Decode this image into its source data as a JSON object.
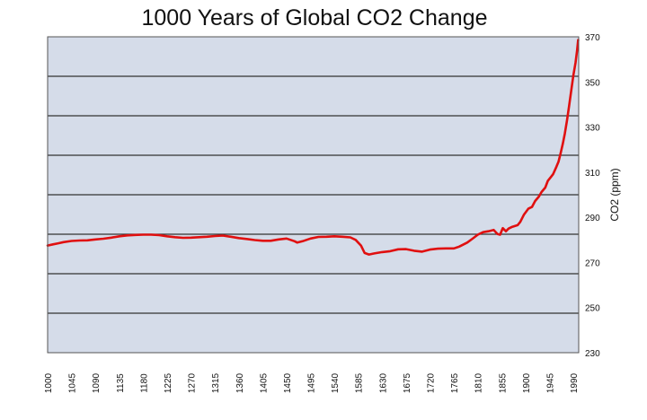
{
  "chart_data": {
    "type": "line",
    "title": "1000 Years of Global CO2 Change",
    "xlabel": "",
    "ylabel": "CO2 (ppm)",
    "xlim": [
      1000,
      2000
    ],
    "ylim": [
      230,
      370
    ],
    "x_ticks": [
      "1000",
      "1045",
      "1090",
      "1135",
      "1180",
      "1225",
      "1270",
      "1315",
      "1360",
      "1405",
      "1450",
      "1495",
      "1540",
      "1585",
      "1630",
      "1675",
      "1720",
      "1765",
      "1810",
      "1855",
      "1900",
      "1945",
      "1990"
    ],
    "y_ticks": [
      "370",
      "350",
      "330",
      "310",
      "290",
      "270",
      "250",
      "230"
    ],
    "grid": true,
    "legend": "none",
    "colors": {
      "line": "#e01010",
      "plot_bg": "#d5dce9",
      "grid": "#333333"
    },
    "series": [
      {
        "points": [
          [
            1000,
            277.5
          ],
          [
            1010,
            278.0
          ],
          [
            1020,
            278.5
          ],
          [
            1030,
            279.0
          ],
          [
            1045,
            279.5
          ],
          [
            1060,
            279.7
          ],
          [
            1075,
            279.8
          ],
          [
            1090,
            280.2
          ],
          [
            1105,
            280.5
          ],
          [
            1120,
            281.0
          ],
          [
            1135,
            281.6
          ],
          [
            1150,
            282.0
          ],
          [
            1165,
            282.2
          ],
          [
            1180,
            282.3
          ],
          [
            1195,
            282.3
          ],
          [
            1210,
            282.1
          ],
          [
            1225,
            281.6
          ],
          [
            1240,
            281.2
          ],
          [
            1255,
            280.9
          ],
          [
            1270,
            281.0
          ],
          [
            1285,
            281.2
          ],
          [
            1300,
            281.4
          ],
          [
            1315,
            281.7
          ],
          [
            1330,
            281.9
          ],
          [
            1345,
            281.4
          ],
          [
            1360,
            280.8
          ],
          [
            1375,
            280.4
          ],
          [
            1390,
            279.9
          ],
          [
            1405,
            279.6
          ],
          [
            1420,
            279.6
          ],
          [
            1435,
            280.2
          ],
          [
            1450,
            280.6
          ],
          [
            1465,
            279.4
          ],
          [
            1470,
            278.8
          ],
          [
            1480,
            279.4
          ],
          [
            1495,
            280.6
          ],
          [
            1510,
            281.3
          ],
          [
            1525,
            281.4
          ],
          [
            1540,
            281.6
          ],
          [
            1555,
            281.4
          ],
          [
            1570,
            281.1
          ],
          [
            1580,
            280.0
          ],
          [
            1590,
            277.5
          ],
          [
            1597,
            274.2
          ],
          [
            1605,
            273.5
          ],
          [
            1615,
            274.0
          ],
          [
            1630,
            274.6
          ],
          [
            1645,
            275.0
          ],
          [
            1660,
            275.8
          ],
          [
            1675,
            275.9
          ],
          [
            1690,
            275.2
          ],
          [
            1705,
            274.8
          ],
          [
            1720,
            275.7
          ],
          [
            1735,
            276.1
          ],
          [
            1750,
            276.2
          ],
          [
            1765,
            276.2
          ],
          [
            1775,
            277.0
          ],
          [
            1790,
            278.8
          ],
          [
            1800,
            280.5
          ],
          [
            1810,
            282.3
          ],
          [
            1820,
            283.4
          ],
          [
            1830,
            283.8
          ],
          [
            1840,
            284.4
          ],
          [
            1847,
            282.6
          ],
          [
            1852,
            282.3
          ],
          [
            1857,
            285.2
          ],
          [
            1863,
            283.8
          ],
          [
            1868,
            285.0
          ],
          [
            1875,
            285.8
          ],
          [
            1885,
            286.5
          ],
          [
            1890,
            288.0
          ],
          [
            1897,
            291.2
          ],
          [
            1905,
            293.8
          ],
          [
            1912,
            294.6
          ],
          [
            1918,
            297.2
          ],
          [
            1925,
            299.2
          ],
          [
            1930,
            301.2
          ],
          [
            1937,
            303.2
          ],
          [
            1942,
            306.2
          ],
          [
            1948,
            308.0
          ],
          [
            1952,
            309.2
          ],
          [
            1958,
            312.4
          ],
          [
            1962,
            314.6
          ],
          [
            1966,
            318.4
          ],
          [
            1970,
            322.6
          ],
          [
            1974,
            327.2
          ],
          [
            1978,
            333.0
          ],
          [
            1982,
            339.6
          ],
          [
            1986,
            346.2
          ],
          [
            1990,
            353.0
          ],
          [
            1994,
            358.6
          ],
          [
            1997,
            364.0
          ],
          [
            1999,
            368.6
          ]
        ]
      }
    ]
  }
}
